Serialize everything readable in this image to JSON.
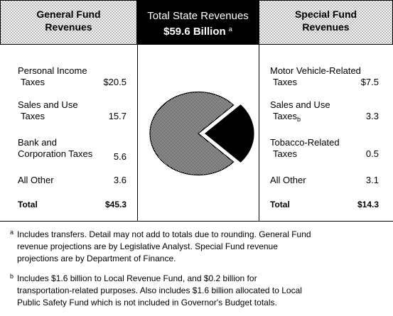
{
  "header": {
    "general_line1": "General Fund",
    "general_line2": "Revenues",
    "total_line1": "Total State Revenues",
    "total_line2": "$59.6 Billion",
    "total_marker": "a",
    "special_line1": "Special Fund",
    "special_line2": "Revenues"
  },
  "general_fund": {
    "items": [
      {
        "label1": "Personal Income",
        "label2": "Taxes",
        "value": "$20.5"
      },
      {
        "label1": "Sales and Use",
        "label2": "Taxes",
        "value": "15.7"
      },
      {
        "label1": "Bank and",
        "label2": "Corporation Taxes",
        "value": "5.6"
      },
      {
        "label1": "All Other",
        "label2": "",
        "value": "3.6"
      }
    ],
    "total_label": "Total",
    "total_value": "$45.3"
  },
  "special_fund": {
    "items": [
      {
        "label1": "Motor Vehicle-Related",
        "label2": "Taxes",
        "value": "$7.5"
      },
      {
        "label1": "Sales and Use",
        "label2": "Taxes",
        "marker": "b",
        "value": "3.3"
      },
      {
        "label1": "Tobacco-Related",
        "label2": "Taxes",
        "value": "0.5"
      },
      {
        "label1": "All Other",
        "label2": "",
        "value": "3.1"
      }
    ],
    "total_label": "Total",
    "total_value": "$14.3"
  },
  "chart_data": {
    "type": "pie",
    "title": "",
    "unit": "billions of dollars",
    "slices": [
      {
        "label": "General Fund Revenues",
        "value": 45.3,
        "color": "#c8c8c8",
        "pattern": "dither"
      },
      {
        "label": "Special Fund Revenues",
        "value": 14.3,
        "color": "#000000",
        "exploded": true
      }
    ],
    "total": 59.6
  },
  "footnotes": {
    "a_marker": "a",
    "a_line1": "Includes transfers. Detail may not add to totals due to rounding. General Fund",
    "a_line2": "revenue projections are by Legislative Analyst. Special Fund revenue",
    "a_line3": "projections are by Department of Finance.",
    "b_marker": "b",
    "b_line1": "Includes $1.6 billion to Local Revenue Fund, and $0.2 billion for",
    "b_line2": "transportation-related purposes. Also includes $1.6 billion allocated to Local",
    "b_line3": "Public Safety Fund which is not included in Governor's Budget totals."
  }
}
